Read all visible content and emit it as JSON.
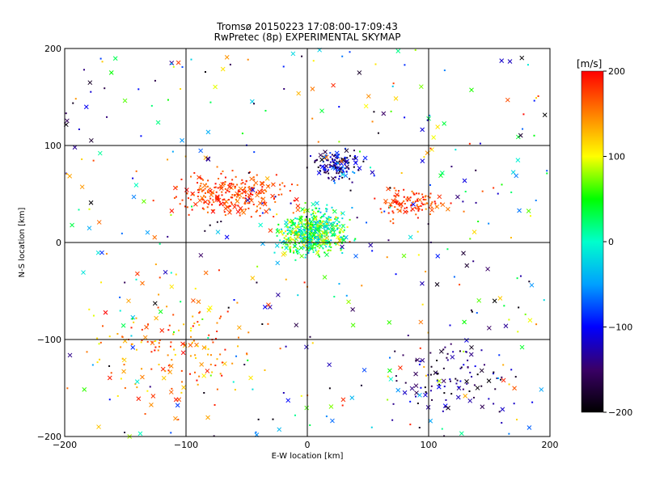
{
  "chart_data": {
    "type": "scatter",
    "title": "Tromsø 20150223 17:08:00-17:09:43",
    "subtitle": "RwPretec (8p) EXPERIMENTAL SKYMAP",
    "xlabel": "E-W location [km]",
    "ylabel": "N-S location [km]",
    "xlim": [
      -200,
      200
    ],
    "ylim": [
      -200,
      200
    ],
    "xticks": [
      -200,
      -100,
      0,
      100,
      200
    ],
    "yticks": [
      -200,
      -100,
      0,
      100,
      200
    ],
    "grid": true,
    "colorbar": {
      "label": "[m/s]",
      "range": [
        -200,
        200
      ],
      "ticks": [
        200,
        100,
        0,
        -100,
        -200
      ],
      "colors": [
        "#000000",
        "#3a0066",
        "#0000ff",
        "#00a0ff",
        "#00ffcc",
        "#00ff00",
        "#ffff00",
        "#ff8000",
        "#ff0000"
      ]
    },
    "markers": [
      "small dot",
      "x"
    ],
    "clusters": [
      {
        "region": "center",
        "x": [
          -30,
          40
        ],
        "y": [
          -20,
          40
        ],
        "value_range": [
          -50,
          120
        ]
      },
      {
        "region": "upper-center",
        "x": [
          0,
          50
        ],
        "y": [
          60,
          100
        ],
        "value_range": [
          -200,
          -50
        ]
      },
      {
        "region": "left-upper",
        "x": [
          -120,
          0
        ],
        "y": [
          20,
          80
        ],
        "value_range": [
          150,
          200
        ]
      },
      {
        "region": "right",
        "x": [
          50,
          120
        ],
        "y": [
          20,
          60
        ],
        "value_range": [
          150,
          200
        ]
      },
      {
        "region": "lower-right",
        "x": [
          60,
          180
        ],
        "y": [
          -200,
          -80
        ],
        "value_range": [
          -200,
          -100
        ]
      },
      {
        "region": "lower-left",
        "x": [
          -200,
          -20
        ],
        "y": [
          -200,
          -20
        ],
        "value_range": [
          100,
          200
        ]
      }
    ]
  }
}
